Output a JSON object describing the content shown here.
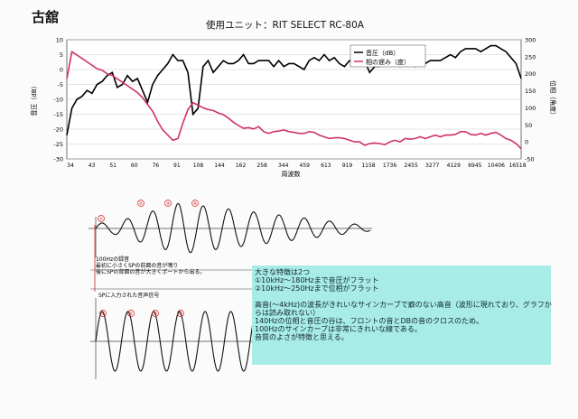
{
  "page": {
    "title": "古舘"
  },
  "chart_data": {
    "type": "line",
    "title": "使用ユニット：RIT SELECT RC-80A",
    "xlabel": "周波数",
    "ylabel_left": "音圧（dB）",
    "ylabel_right": "位相（角度）",
    "ylim_left": [
      -30,
      10
    ],
    "ylim_right": [
      -50,
      300
    ],
    "yticks_left": [
      "10",
      "5",
      "0",
      "-5",
      "-10",
      "-15",
      "-20",
      "-25",
      "-30"
    ],
    "yticks_right": [
      "300",
      "250",
      "200",
      "150",
      "100",
      "50",
      "0",
      "-50"
    ],
    "xtick_labels": [
      "34",
      "43",
      "51",
      "60",
      "76",
      "91",
      "108",
      "144",
      "162",
      "258",
      "344",
      "459",
      "613",
      "919",
      "1158",
      "1736",
      "2455",
      "3277",
      "4129",
      "6945",
      "10406",
      "16518"
    ],
    "legend_position": "top-right",
    "series": [
      {
        "name": "音圧（dB）",
        "color": "#000000",
        "axis": "left",
        "values": [
          -22,
          -13,
          -10,
          -9,
          -7,
          -8,
          -5,
          -4,
          -2,
          -1,
          -6,
          -5,
          -2,
          -4,
          -3,
          -7,
          -11,
          -5,
          -2,
          0,
          2,
          5,
          3,
          3,
          -1,
          -15,
          -13,
          1,
          3,
          -1,
          1,
          3,
          2,
          2,
          3,
          5,
          2,
          2,
          3,
          3,
          3,
          1,
          3,
          1,
          2,
          2,
          1,
          0,
          3,
          4,
          3,
          5,
          3,
          4,
          2,
          1,
          3,
          2,
          2,
          3,
          -1,
          1,
          1,
          2,
          2,
          2,
          1,
          2,
          3,
          1,
          2,
          2,
          3,
          3,
          3,
          4,
          5,
          4,
          6,
          7,
          7,
          7,
          6,
          7,
          8,
          8,
          7,
          6,
          4,
          2,
          -3
        ]
      },
      {
        "name": "相の遅み（度）",
        "color": "#d0306a",
        "axis": "right",
        "values": [
          185,
          265,
          255,
          245,
          235,
          225,
          215,
          210,
          200,
          195,
          185,
          175,
          165,
          155,
          145,
          130,
          110,
          90,
          60,
          35,
          20,
          5,
          10,
          55,
          95,
          115,
          108,
          100,
          95,
          92,
          85,
          80,
          70,
          58,
          48,
          40,
          42,
          38,
          45,
          30,
          25,
          30,
          32,
          35,
          30,
          28,
          25,
          25,
          30,
          28,
          20,
          15,
          10,
          12,
          12,
          10,
          5,
          0,
          0,
          -10,
          -5,
          -3,
          -5,
          -8,
          0,
          5,
          0,
          10,
          8,
          10,
          15,
          10,
          15,
          20,
          15,
          20,
          20,
          22,
          30,
          30,
          22,
          20,
          25,
          20,
          25,
          28,
          20,
          10,
          5,
          -5,
          -20
        ]
      }
    ]
  },
  "waves": {
    "top": {
      "markers": [
        "①",
        "②",
        "③",
        "④"
      ],
      "note_lines": [
        "100Hzの録音",
        "最初に小さくSPの前面の音が鳴り",
        "後にSPの背面の音が大きくポートから出る。"
      ]
    },
    "bottom": {
      "label": "SPに入力された音声信号",
      "markers": [
        "①",
        "②",
        "③",
        "④"
      ]
    }
  },
  "note": {
    "lines": [
      "大きな特徴は2つ",
      "①10kHz～180Hzまで音圧がフラット",
      "②10kHz～250Hzまで位相がフラット",
      "",
      "高音(～4kHz)の波長がきれいなサインカーブで癖のない高音（波形に現れており、グラフか",
      "らは読み取れない）",
      "140Hzの位相と音圧の谷は、フロントの音とDBの音のクロスのため。",
      "100Hzのサインカーブは非常にきれいな線である。",
      "音質のよさが特徴と思える。"
    ]
  }
}
